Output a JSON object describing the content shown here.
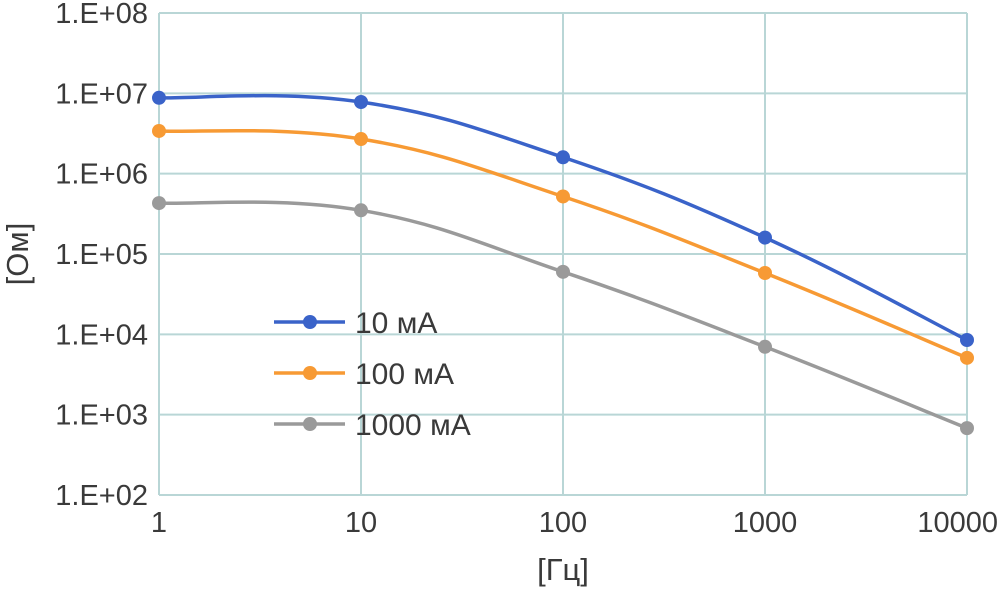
{
  "chart_data": {
    "type": "line",
    "x": [
      1,
      10,
      100,
      1000,
      10000
    ],
    "x_tick_labels": [
      "1",
      "10",
      "100",
      "1000",
      "10000"
    ],
    "y_tick_labels": [
      "1.E+02",
      "1.E+03",
      "1.E+04",
      "1.E+05",
      "1.E+06",
      "1.E+07",
      "1.E+08"
    ],
    "xlabel": "[Гц]",
    "ylabel": "[Ом]",
    "xscale": "log",
    "yscale": "log",
    "xlim": [
      1,
      10000
    ],
    "ylim": [
      100,
      100000000
    ],
    "grid": true,
    "legend_position": "lower-left",
    "grid_color": "#b9d6d6",
    "series": [
      {
        "name": "10 мА",
        "color": "#3a63c9",
        "values": [
          8800000,
          7800000,
          1600000,
          160000,
          8500
        ]
      },
      {
        "name": "100 мА",
        "color": "#f79a34",
        "values": [
          3400000,
          2700000,
          520000,
          58000,
          5100
        ]
      },
      {
        "name": "1000 мА",
        "color": "#9a9a9a",
        "values": [
          430000,
          350000,
          60000,
          7000,
          680
        ]
      }
    ]
  }
}
